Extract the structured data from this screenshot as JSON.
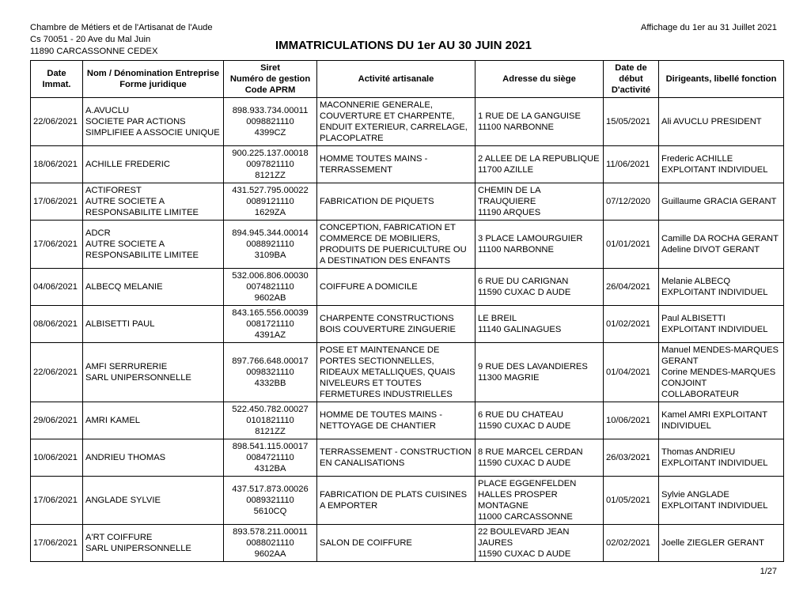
{
  "header": {
    "org1": "Chambre de Métiers et de l'Artisanat de l'Aude",
    "org2": "Cs 70051 - 20 Ave du Mal Juin",
    "org3": "11890 CARCASSONNE CEDEX",
    "affichage": "Affichage du 1er au 31 Juillet 2021",
    "title": "IMMATRICULATIONS DU 1er AU 30 JUIN 2021"
  },
  "columns": {
    "c0": "Date Immat.",
    "c1a": "Nom / Dénomination Entreprise",
    "c1b": "Forme juridique",
    "c2a": "Siret",
    "c2b": "Numéro de gestion",
    "c2c": "Code APRM",
    "c3": "Activité artisanale",
    "c4": "Adresse du siège",
    "c5a": "Date de",
    "c5b": "début",
    "c5c": "D'activité",
    "c6": "Dirigeants, libellé fonction"
  },
  "rows": [
    {
      "date": "22/06/2021",
      "nom": "A.AVUCLU\nSOCIETE PAR ACTIONS SIMPLIFIEE A ASSOCIE UNIQUE",
      "siret": "898.933.734.00011\n0098821110\n4399CZ",
      "activite": "MACONNERIE GENERALE, COUVERTURE ET CHARPENTE, ENDUIT EXTERIEUR, CARRELAGE, PLACOPLATRE",
      "adresse": "1 RUE DE LA GANGUISE\n11100 NARBONNE",
      "debut": "15/05/2021",
      "dirigeants": "Ali AVUCLU PRESIDENT"
    },
    {
      "date": "18/06/2021",
      "nom": "ACHILLE FREDERIC",
      "siret": "900.225.137.00018\n0097821110\n8121ZZ",
      "activite": "HOMME TOUTES MAINS - TERRASSEMENT",
      "adresse": "2 ALLEE DE LA REPUBLIQUE\n11700 AZILLE",
      "debut": "11/06/2021",
      "dirigeants": "Frederic ACHILLE\nEXPLOITANT INDIVIDUEL"
    },
    {
      "date": "17/06/2021",
      "nom": "ACTIFOREST\nAUTRE SOCIETE A RESPONSABILITE LIMITEE",
      "siret": "431.527.795.00022\n0089121110\n1629ZA",
      "activite": "FABRICATION DE PIQUETS",
      "adresse": "CHEMIN DE LA TRAUQUIERE\n11190 ARQUES",
      "debut": "07/12/2020",
      "dirigeants": "Guillaume GRACIA GERANT"
    },
    {
      "date": "17/06/2021",
      "nom": "ADCR\nAUTRE SOCIETE A RESPONSABILITE LIMITEE",
      "siret": "894.945.344.00014\n0088921110\n3109BA",
      "activite": "CONCEPTION, FABRICATION ET COMMERCE DE MOBILIERS, PRODUITS DE PUERICULTURE OU A DESTINATION DES ENFANTS",
      "adresse": "3 PLACE LAMOURGUIER\n11100 NARBONNE",
      "debut": "01/01/2021",
      "dirigeants": "Camille DA ROCHA GERANT\nAdeline DIVOT GERANT"
    },
    {
      "date": "04/06/2021",
      "nom": "ALBECQ MELANIE",
      "siret": "532.006.806.00030\n0074821110\n9602AB",
      "activite": "COIFFURE A DOMICILE",
      "adresse": "6 RUE DU CARIGNAN\n11590 CUXAC D AUDE",
      "debut": "26/04/2021",
      "dirigeants": "Melanie ALBECQ\nEXPLOITANT INDIVIDUEL"
    },
    {
      "date": "08/06/2021",
      "nom": "ALBISETTI PAUL",
      "siret": "843.165.556.00039\n0081721110\n4391AZ",
      "activite": "CHARPENTE CONSTRUCTIONS BOIS COUVERTURE ZINGUERIE",
      "adresse": "LE BREIL\n11140 GALINAGUES",
      "debut": "01/02/2021",
      "dirigeants": "Paul ALBISETTI EXPLOITANT INDIVIDUEL"
    },
    {
      "date": "22/06/2021",
      "nom": "AMFI SERRURERIE\nSARL UNIPERSONNELLE",
      "siret": "897.766.648.00017\n0098321110\n4332BB",
      "activite": "POSE ET MAINTENANCE DE PORTES SECTIONNELLES, RIDEAUX METALLIQUES, QUAIS NIVELEURS ET TOUTES FERMETURES INDUSTRIELLES",
      "adresse": "9 RUE DES LAVANDIERES\n11300 MAGRIE",
      "debut": "01/04/2021",
      "dirigeants": "Manuel MENDES-MARQUES GERANT\nCorine MENDES-MARQUES CONJOINT COLLABORATEUR"
    },
    {
      "date": "29/06/2021",
      "nom": "AMRI KAMEL",
      "siret": "522.450.782.00027\n0101821110\n8121ZZ",
      "activite": "HOMME DE TOUTES MAINS - NETTOYAGE DE CHANTIER",
      "adresse": "6 RUE DU CHATEAU\n11590 CUXAC D AUDE",
      "debut": "10/06/2021",
      "dirigeants": "Kamel AMRI EXPLOITANT INDIVIDUEL"
    },
    {
      "date": "10/06/2021",
      "nom": "ANDRIEU THOMAS",
      "siret": "898.541.115.00017\n0084721110\n4312BA",
      "activite": "TERRASSEMENT - CONSTRUCTION EN CANALISATIONS",
      "adresse": "8 RUE MARCEL CERDAN\n11590 CUXAC D AUDE",
      "debut": "26/03/2021",
      "dirigeants": "Thomas ANDRIEU\nEXPLOITANT INDIVIDUEL"
    },
    {
      "date": "17/06/2021",
      "nom": "ANGLADE SYLVIE",
      "siret": "437.517.873.00026\n0089321110\n5610CQ",
      "activite": "FABRICATION DE PLATS CUISINES A EMPORTER",
      "adresse": "PLACE EGGENFELDEN\nHALLES PROSPER MONTAGNE\n11000 CARCASSONNE",
      "debut": "01/05/2021",
      "dirigeants": "Sylvie ANGLADE\nEXPLOITANT INDIVIDUEL"
    },
    {
      "date": "17/06/2021",
      "nom": "A'RT COIFFURE\nSARL UNIPERSONNELLE",
      "siret": "893.578.211.00011\n0088021110\n9602AA",
      "activite": "SALON DE COIFFURE",
      "adresse": "22 BOULEVARD JEAN JAURES\n11590 CUXAC D AUDE",
      "debut": "02/02/2021",
      "dirigeants": "Joelle ZIEGLER GERANT"
    }
  ],
  "page": "1/27"
}
